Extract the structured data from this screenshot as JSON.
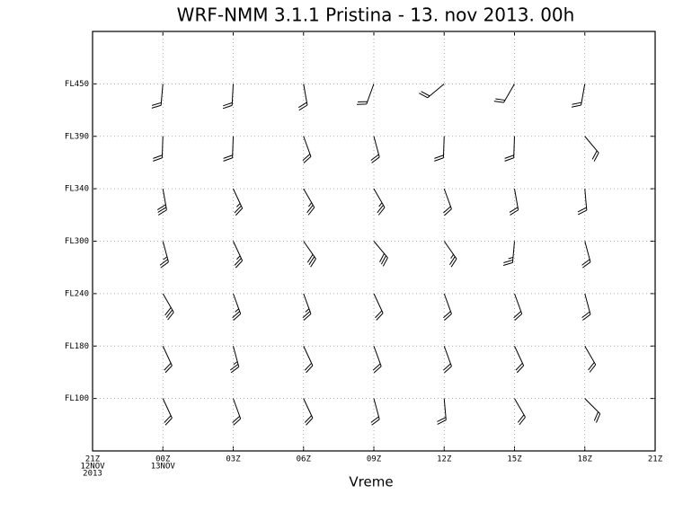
{
  "chart_data": {
    "type": "barbs",
    "title": "WRF-NMM 3.1.1 Pristina - 13. nov 2013. 00h",
    "x_label": "Vreme",
    "categories": [
      "21Z",
      "00Z",
      "03Z",
      "06Z",
      "09Z",
      "12Z",
      "15Z",
      "18Z",
      "21Z"
    ],
    "date_labels": [
      [
        "12NOV",
        "2013"
      ],
      [
        "13NOV"
      ],
      null,
      null,
      null,
      null,
      null,
      null,
      null
    ],
    "levels": [
      "FL450",
      "FL390",
      "FL340",
      "FL300",
      "FL240",
      "FL180",
      "FL100"
    ],
    "grid": true,
    "color": "#000000",
    "directions": [
      [
        185,
        183,
        170,
        200,
        230,
        210,
        190
      ],
      [
        182,
        182,
        160,
        165,
        182,
        182,
        140
      ],
      [
        170,
        155,
        150,
        150,
        160,
        170,
        175
      ],
      [
        165,
        155,
        145,
        140,
        145,
        185,
        165
      ],
      [
        150,
        160,
        160,
        155,
        160,
        160,
        165
      ],
      [
        155,
        165,
        155,
        160,
        160,
        155,
        150
      ],
      [
        155,
        160,
        155,
        165,
        175,
        150,
        135
      ]
    ],
    "speeds": [
      [
        20,
        20,
        20,
        20,
        20,
        20,
        20
      ],
      [
        20,
        20,
        20,
        20,
        20,
        20,
        20
      ],
      [
        30,
        25,
        25,
        25,
        20,
        20,
        20
      ],
      [
        25,
        25,
        30,
        30,
        25,
        25,
        20
      ],
      [
        30,
        25,
        25,
        20,
        20,
        20,
        20
      ],
      [
        20,
        25,
        20,
        20,
        20,
        20,
        20
      ],
      [
        20,
        20,
        20,
        20,
        20,
        20,
        20
      ]
    ]
  }
}
